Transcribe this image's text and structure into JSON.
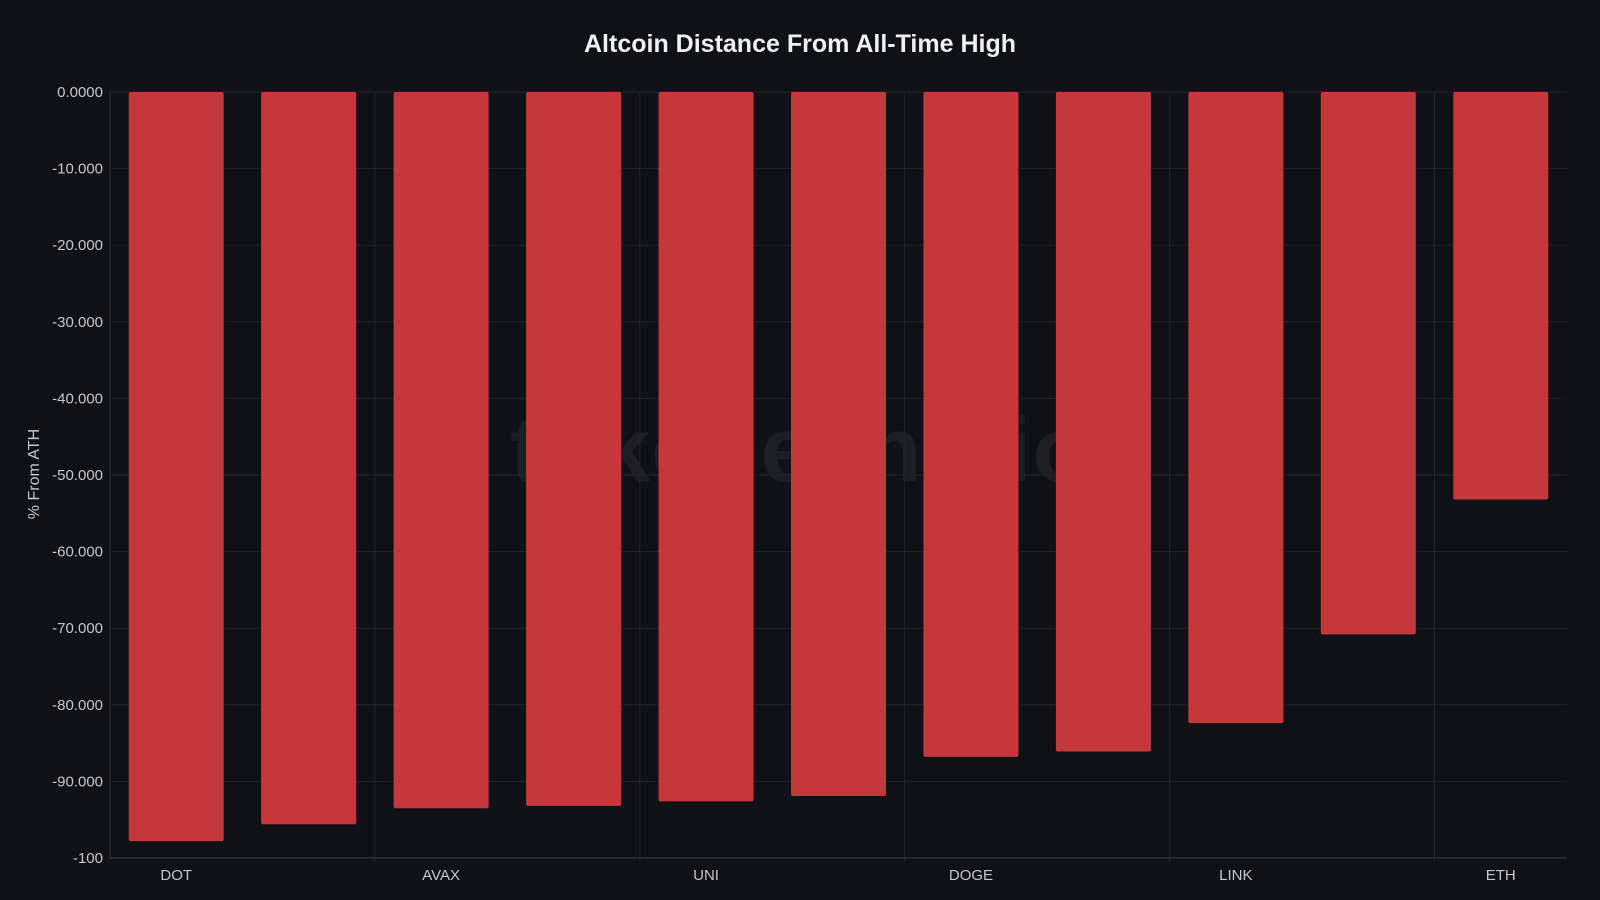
{
  "chart_data": {
    "type": "bar",
    "title": "Altcoin Distance From All-Time High",
    "xlabel": "",
    "ylabel": "% From ATH",
    "ylim": [
      -100,
      0
    ],
    "y_ticks": [
      {
        "value": 0,
        "label": "0.0000"
      },
      {
        "value": -10,
        "label": "-10.000"
      },
      {
        "value": -20,
        "label": "-20.000"
      },
      {
        "value": -30,
        "label": "-30.000"
      },
      {
        "value": -40,
        "label": "-40.000"
      },
      {
        "value": -50,
        "label": "-50.000"
      },
      {
        "value": -60,
        "label": "-60.000"
      },
      {
        "value": -70,
        "label": "-70.000"
      },
      {
        "value": -80,
        "label": "-80.000"
      },
      {
        "value": -90,
        "label": "-90.000"
      },
      {
        "value": -100,
        "label": "-100"
      }
    ],
    "categories": [
      "DOT",
      "",
      "AVAX",
      "",
      "UNI",
      "",
      "DOGE",
      "",
      "LINK",
      "",
      "ETH"
    ],
    "values": [
      -97.8,
      -95.6,
      -93.5,
      -93.2,
      -92.6,
      -91.9,
      -86.8,
      -86.1,
      -82.4,
      -70.8,
      -53.2
    ],
    "bar_color": "#c4383c",
    "grid": true,
    "legend": "none"
  },
  "watermark": "tokenecho.io"
}
